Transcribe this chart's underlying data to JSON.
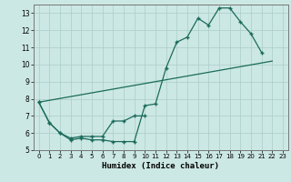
{
  "xlabel": "Humidex (Indice chaleur)",
  "bg_color": "#cce8e4",
  "grid_color": "#aaccca",
  "line_color": "#1a6b5a",
  "xlim": [
    -0.5,
    23.5
  ],
  "ylim": [
    5,
    13.5
  ],
  "yticks": [
    5,
    6,
    7,
    8,
    9,
    10,
    11,
    12,
    13
  ],
  "xticks": [
    0,
    1,
    2,
    3,
    4,
    5,
    6,
    7,
    8,
    9,
    10,
    11,
    12,
    13,
    14,
    15,
    16,
    17,
    18,
    19,
    20,
    21,
    22,
    23
  ],
  "line1_x": [
    0,
    1,
    2,
    3,
    4,
    5,
    6,
    7,
    8,
    9,
    10,
    11,
    12,
    13,
    14,
    15,
    16,
    17,
    18,
    19,
    20,
    21
  ],
  "line1_y": [
    7.8,
    6.6,
    6.0,
    5.6,
    5.7,
    5.6,
    5.6,
    5.5,
    5.5,
    5.5,
    7.6,
    7.7,
    9.8,
    11.3,
    11.6,
    12.7,
    12.3,
    13.3,
    13.3,
    12.5,
    11.8,
    10.7
  ],
  "line2_x": [
    0,
    1,
    2,
    3,
    4,
    5,
    6,
    7,
    8,
    9,
    10
  ],
  "line2_y": [
    7.8,
    6.6,
    6.0,
    5.7,
    5.8,
    5.8,
    5.8,
    6.7,
    6.7,
    7.0,
    7.0
  ],
  "line3_x": [
    0,
    22
  ],
  "line3_y": [
    7.8,
    10.2
  ]
}
